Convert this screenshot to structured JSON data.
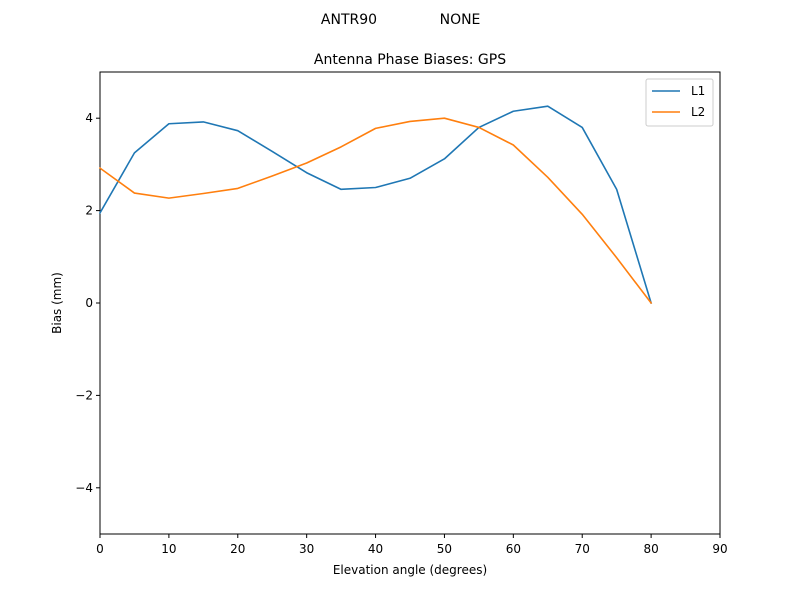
{
  "header": {
    "antenna": "ANTR90",
    "radome": "NONE"
  },
  "chart_data": {
    "type": "line",
    "title": "Antenna Phase Biases: GPS",
    "xlabel": "Elevation angle (degrees)",
    "ylabel": "Bias (mm)",
    "xlim": [
      0,
      90
    ],
    "ylim": [
      -5,
      5
    ],
    "x_ticks": [
      0,
      10,
      20,
      30,
      40,
      50,
      60,
      70,
      80,
      90
    ],
    "y_ticks": [
      -4,
      -2,
      0,
      2,
      4
    ],
    "x_tick_labels": [
      "0",
      "10",
      "20",
      "30",
      "40",
      "50",
      "60",
      "70",
      "80",
      "90"
    ],
    "y_tick_labels": [
      "−4",
      "−2",
      "0",
      "2",
      "4"
    ],
    "grid": false,
    "legend_position": "top-right",
    "x": [
      0,
      5,
      10,
      15,
      20,
      25,
      30,
      35,
      40,
      45,
      50,
      55,
      60,
      65,
      70,
      75,
      80
    ],
    "series": [
      {
        "name": "L1",
        "color": "#1f77b4",
        "values": [
          1.95,
          3.25,
          3.88,
          3.92,
          3.73,
          3.28,
          2.82,
          2.46,
          2.5,
          2.7,
          3.12,
          3.8,
          4.15,
          4.26,
          3.8,
          2.46,
          0.0
        ]
      },
      {
        "name": "L2",
        "color": "#ff7f0e",
        "values": [
          2.92,
          2.38,
          2.27,
          2.37,
          2.48,
          2.75,
          3.03,
          3.38,
          3.78,
          3.93,
          4.0,
          3.8,
          3.42,
          2.72,
          1.92,
          0.98,
          0.0
        ]
      }
    ]
  }
}
